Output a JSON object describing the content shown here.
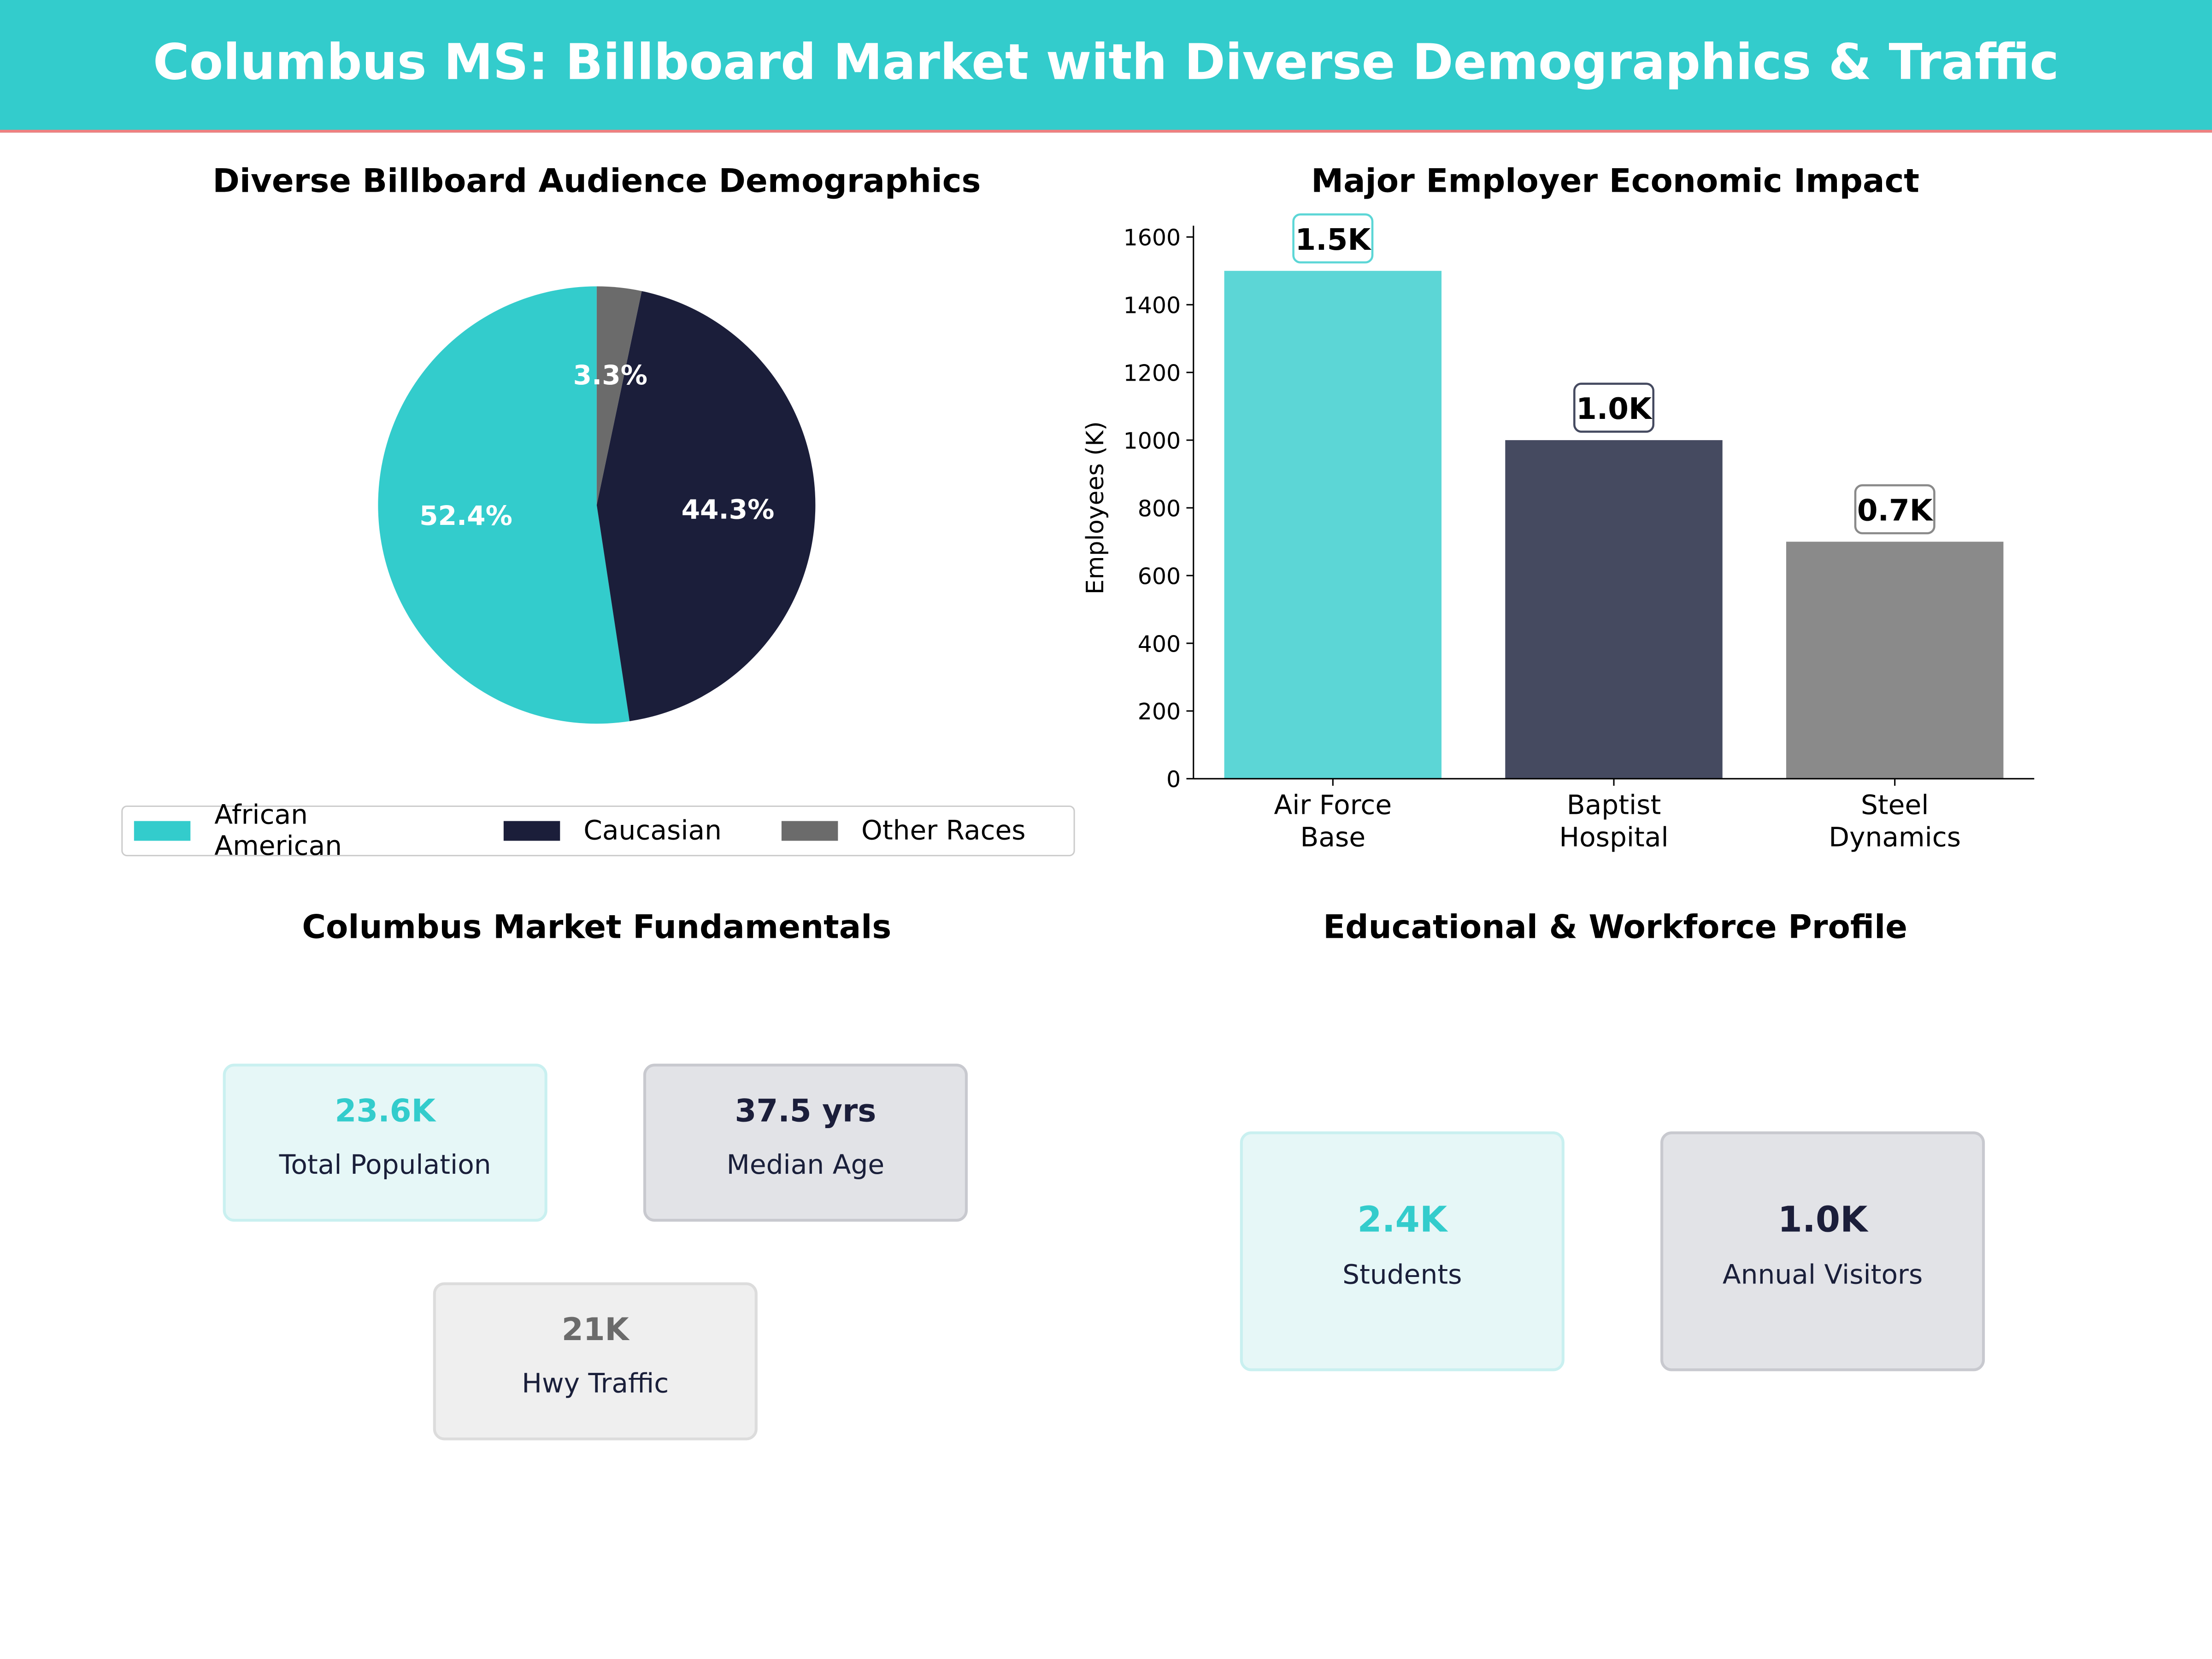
{
  "header": {
    "title": "Columbus MS: Billboard Market with Diverse Demographics & Traffic"
  },
  "colors": {
    "teal": "#33cccc",
    "navy": "#1b1e3a",
    "gray": "#6b6b6b",
    "accent_line": "#f08080"
  },
  "chart_data": [
    {
      "type": "pie",
      "title": "Diverse Billboard Audience Demographics",
      "categories": [
        "African American",
        "Caucasian",
        "Other Races"
      ],
      "values": [
        52.4,
        44.3,
        3.3
      ],
      "labels": [
        "52.4%",
        "44.3%",
        "3.3%"
      ],
      "colors": [
        "#33cccc",
        "#1b1e3a",
        "#6b6b6b"
      ],
      "legend_position": "bottom"
    },
    {
      "type": "bar",
      "title": "Major Employer Economic Impact",
      "categories": [
        "Air Force\nBase",
        "Baptist\nHospital",
        "Steel\nDynamics"
      ],
      "values": [
        1500,
        1000,
        700
      ],
      "data_labels": [
        "1.5K",
        "1.0K",
        "0.7K"
      ],
      "colors": [
        "#5cd6d6",
        "#454a60",
        "#8a8a8a"
      ],
      "xlabel": "",
      "ylabel": "Employees (K)",
      "ylim": [
        0,
        1600
      ],
      "yticks": [
        "0",
        "200",
        "400",
        "600",
        "800",
        "1000",
        "1200",
        "1400",
        "1600"
      ],
      "grid": false
    }
  ],
  "fundamentals": {
    "title": "Columbus Market Fundamentals",
    "cards": [
      {
        "value": "23.6K",
        "label": "Total Population"
      },
      {
        "value": "37.5 yrs",
        "label": "Median Age"
      },
      {
        "value": "21K",
        "label": "Hwy Traffic"
      }
    ]
  },
  "education": {
    "title": "Educational & Workforce Profile",
    "cards": [
      {
        "value": "2.4K",
        "label": "Students"
      },
      {
        "value": "1.0K",
        "label": "Annual Visitors"
      }
    ]
  }
}
